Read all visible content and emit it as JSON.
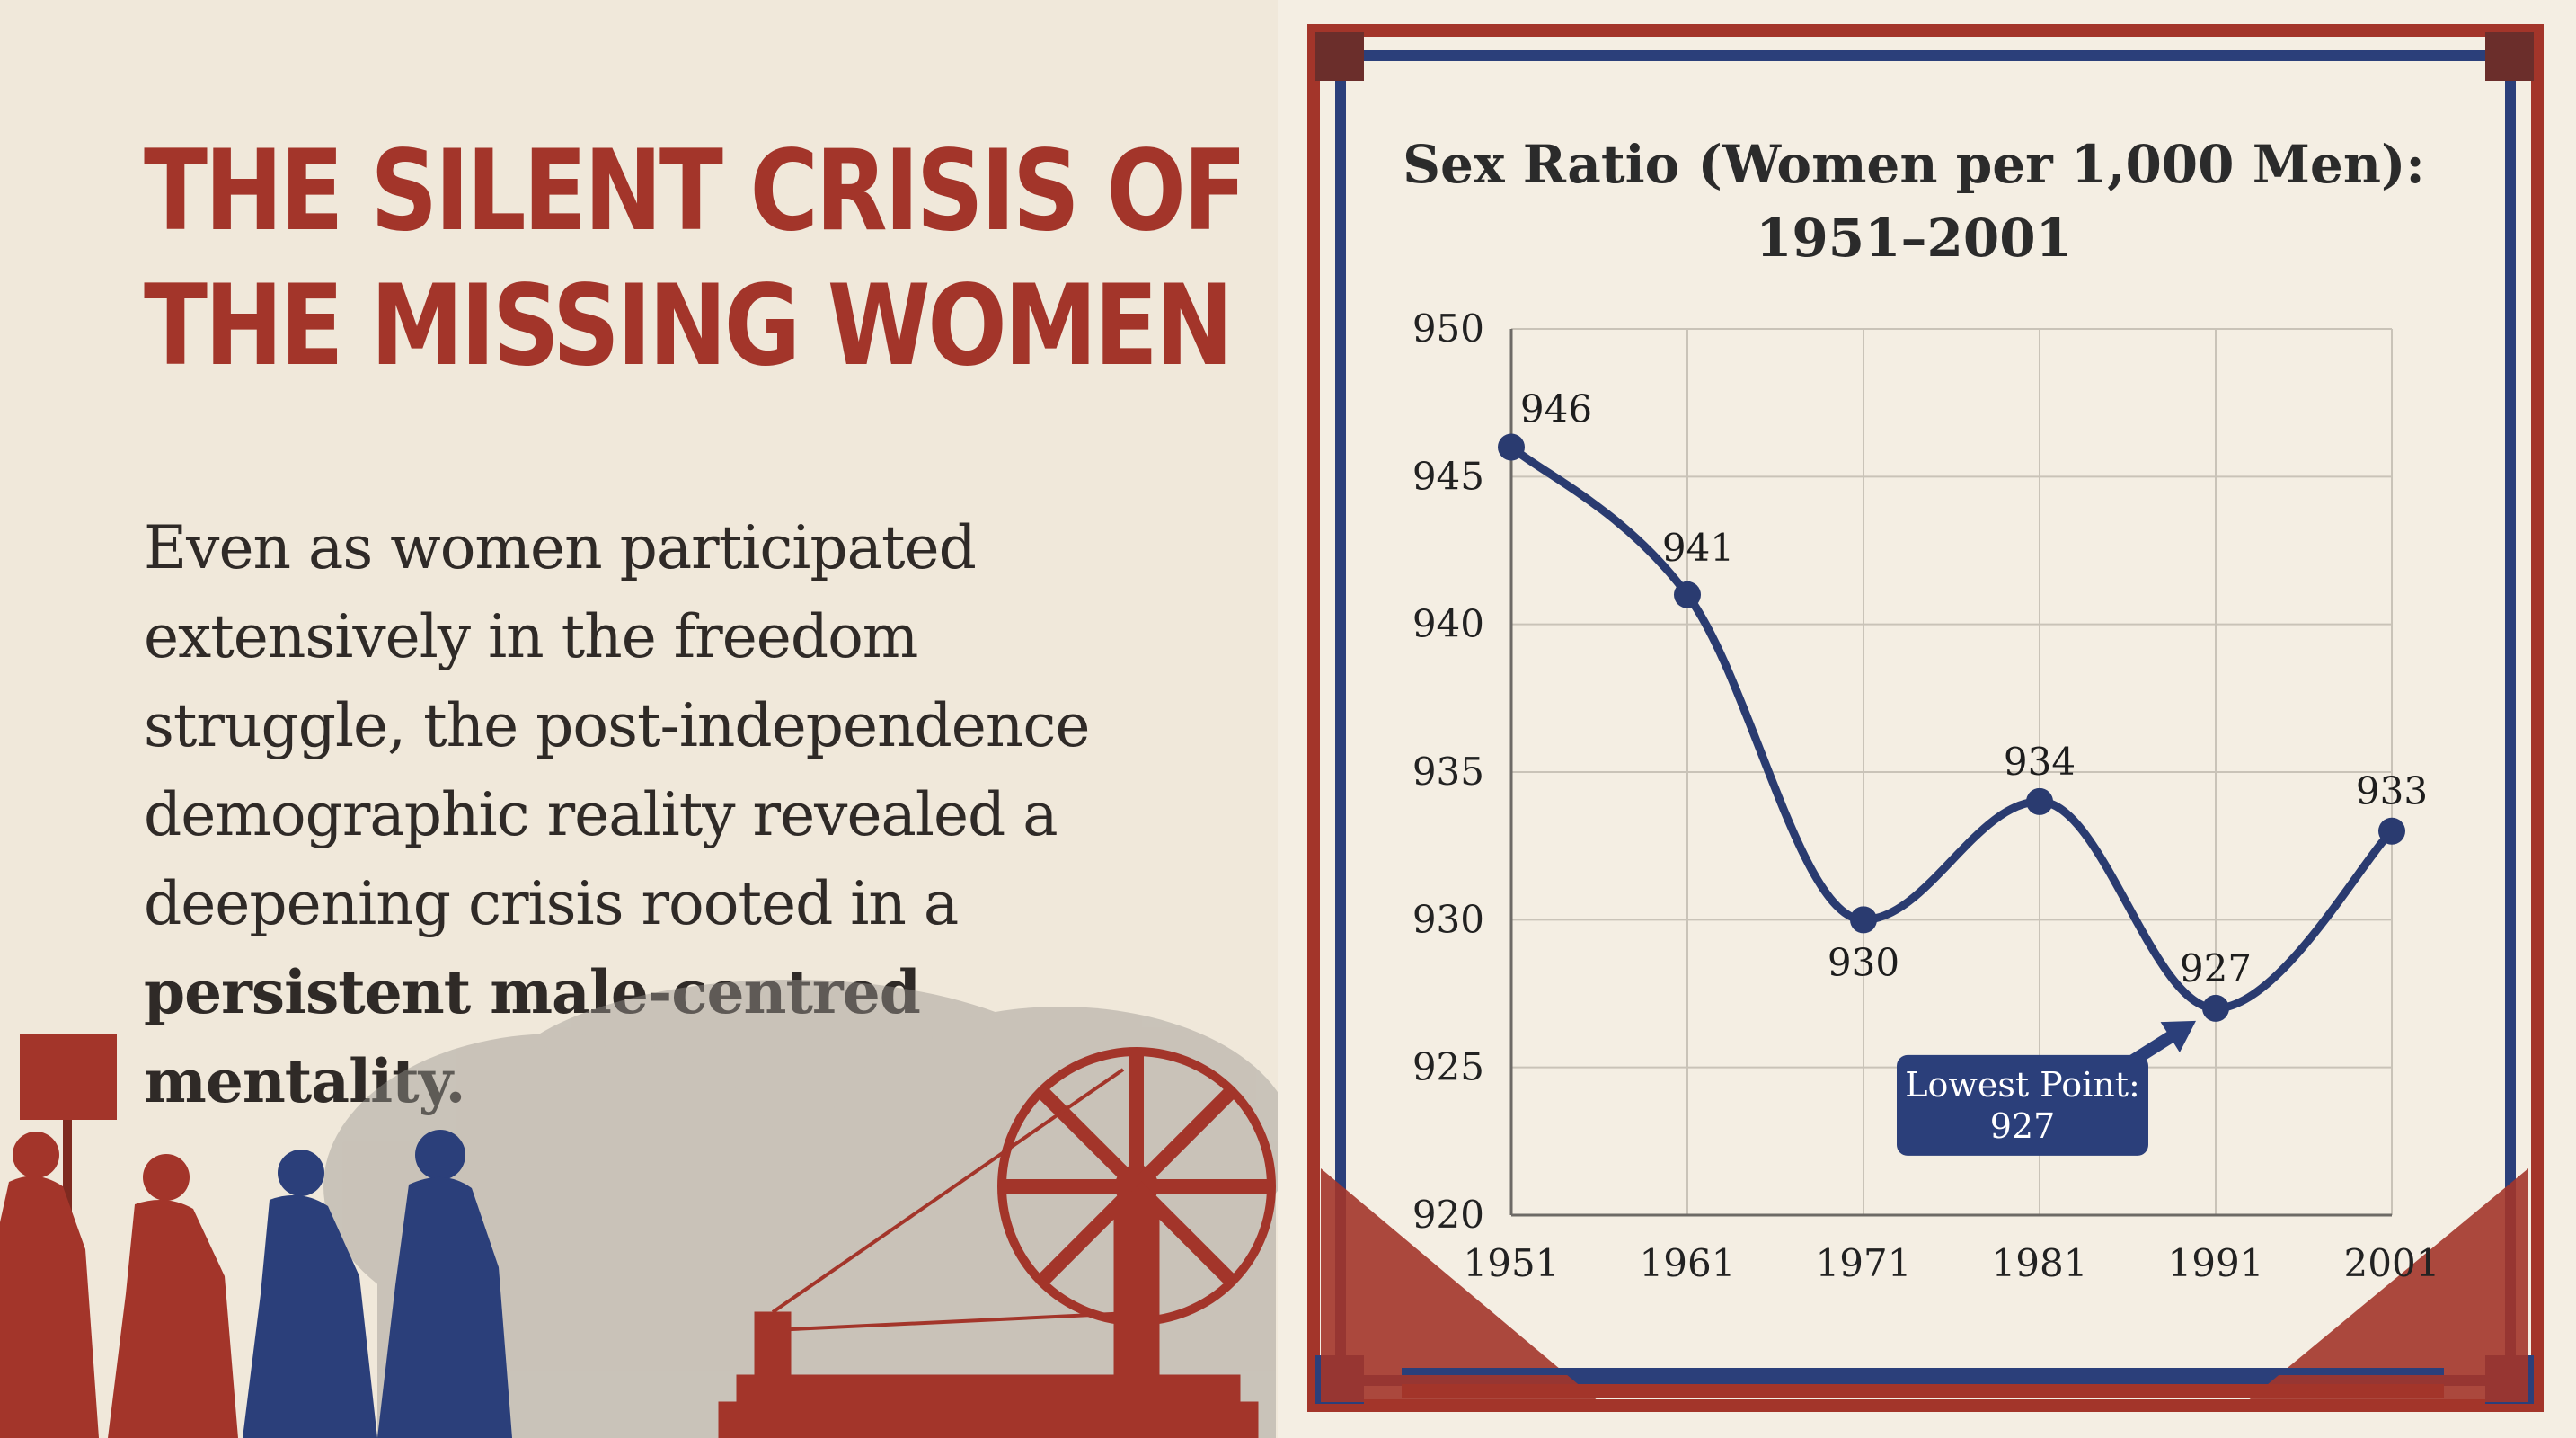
{
  "headline": {
    "line1": "THE SILENT CRISIS OF",
    "line2": "THE MISSING WOMEN"
  },
  "body": {
    "line1": "Even as women participated",
    "line2": "extensively in the freedom",
    "line3": "struggle, the post-independence",
    "line4": "demographic reality revealed a",
    "line5": "deepening crisis rooted in a",
    "line6_bold": "persistent male-centred",
    "line7_bold": "mentality."
  },
  "colors": {
    "accent_red": "#a3352a",
    "navy": "#2b3f7a",
    "line_navy": "#2a3b70",
    "paper": "#f0e8da"
  },
  "chart_data": {
    "type": "line",
    "title_line1": "Sex Ratio (Women per 1,000 Men):",
    "title_line2": "1951–2001",
    "x": [
      "1951",
      "1961",
      "1971",
      "1981",
      "1991",
      "2001"
    ],
    "values": [
      946,
      941,
      930,
      934,
      927,
      933
    ],
    "data_labels": [
      "946",
      "941",
      "930",
      "934",
      "927",
      "933"
    ],
    "y_ticks": [
      "950",
      "945",
      "940",
      "935",
      "930",
      "925",
      "920"
    ],
    "ylim": [
      920,
      950
    ],
    "grid": true,
    "annotation": {
      "line1": "Lowest Point:",
      "line2": "927",
      "target_index": 4
    }
  }
}
